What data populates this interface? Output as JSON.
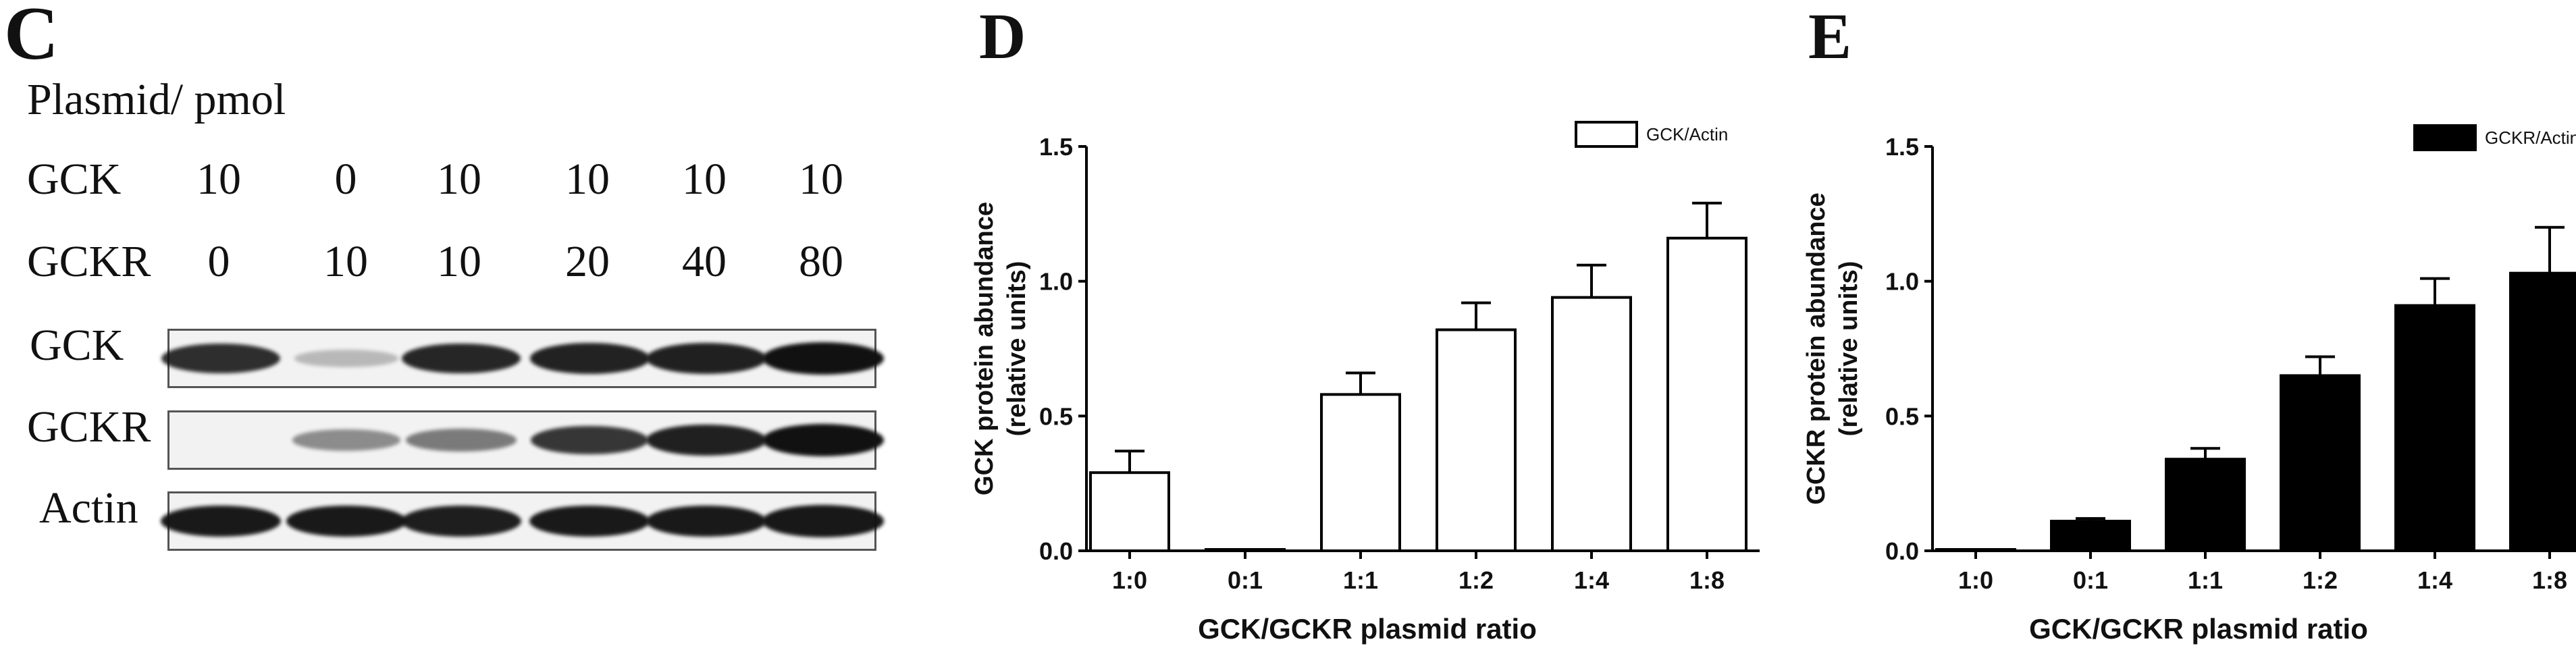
{
  "panel_c": {
    "letter": "C",
    "subtitle": "Plasmid/ pmol",
    "gck_row_label": "GCK",
    "gck_amounts": [
      "10",
      "0",
      "10",
      "10",
      "10",
      "10"
    ],
    "gckr_row_label": "GCKR",
    "gckr_amounts": [
      "0",
      "10",
      "10",
      "20",
      "40",
      "80"
    ],
    "blots": [
      {
        "label": "GCK",
        "band_intensity": [
          0.85,
          0.12,
          0.88,
          0.9,
          0.92,
          1.0
        ]
      },
      {
        "label": "GCKR",
        "band_intensity": [
          0.0,
          0.35,
          0.45,
          0.8,
          0.92,
          1.0
        ]
      },
      {
        "label": "Actin",
        "band_intensity": [
          0.95,
          0.95,
          0.93,
          0.95,
          0.95,
          0.97
        ]
      }
    ],
    "band_color": "#111111",
    "blot_background": "#f2f2f2"
  },
  "chart_data": [
    {
      "panel_letter": "D",
      "type": "bar",
      "categories": [
        "1:0",
        "0:1",
        "1:1",
        "1:2",
        "1:4",
        "1:8"
      ],
      "series": [
        {
          "name": "GCK/Actin",
          "values": [
            0.29,
            0.005,
            0.58,
            0.82,
            0.94,
            1.16
          ],
          "errors": [
            0.08,
            0.0,
            0.08,
            0.1,
            0.12,
            0.13
          ],
          "fill": "#ffffff"
        }
      ],
      "xlabel": "GCK/GCKR plasmid ratio",
      "ylabel_line1": "GCK protein abundance",
      "ylabel_line2": "(relative units)",
      "ylim": [
        0,
        1.5
      ],
      "yticks": [
        "0.0",
        "0.5",
        "1.0",
        "1.5"
      ],
      "legend_position": "top-right"
    },
    {
      "panel_letter": "E",
      "type": "bar",
      "categories": [
        "1:0",
        "0:1",
        "1:1",
        "1:2",
        "1:4",
        "1:8"
      ],
      "series": [
        {
          "name": "GCKR/Actin",
          "values": [
            0.005,
            0.11,
            0.34,
            0.65,
            0.91,
            1.03
          ],
          "errors": [
            0.0,
            0.01,
            0.04,
            0.07,
            0.1,
            0.17
          ],
          "fill": "#000000"
        }
      ],
      "xlabel": "GCK/GCKR plasmid ratio",
      "ylabel_line1": "GCKR protein abundance",
      "ylabel_line2": "(relative units)",
      "ylim": [
        0,
        1.5
      ],
      "yticks": [
        "0.0",
        "0.5",
        "1.0",
        "1.5"
      ],
      "legend_position": "top-right"
    }
  ]
}
